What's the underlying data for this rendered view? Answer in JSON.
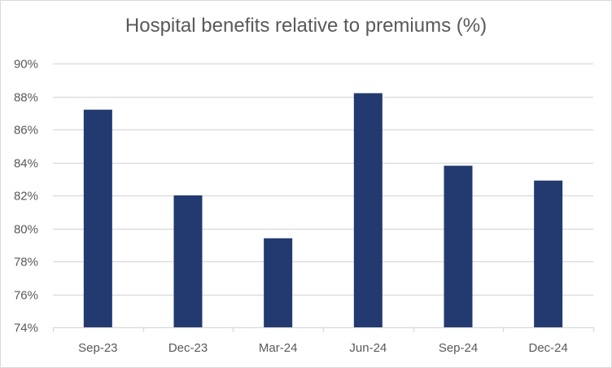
{
  "chart_data": {
    "type": "bar",
    "title": "Hospital benefits relative to premiums (%)",
    "categories": [
      "Sep-23",
      "Dec-23",
      "Mar-24",
      "Jun-24",
      "Sep-24",
      "Dec-24"
    ],
    "values": [
      87.2,
      82.0,
      79.4,
      88.2,
      83.8,
      82.9
    ],
    "xlabel": "",
    "ylabel": "",
    "ylim": [
      74,
      90
    ],
    "yticks": [
      74,
      76,
      78,
      80,
      82,
      84,
      86,
      88,
      90
    ],
    "ytick_labels": [
      "74%",
      "76%",
      "78%",
      "80%",
      "82%",
      "84%",
      "86%",
      "88%",
      "90%"
    ],
    "grid": true,
    "legend": "none",
    "bar_color": "#223a70"
  }
}
